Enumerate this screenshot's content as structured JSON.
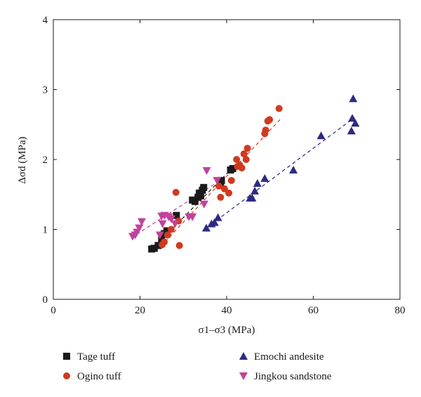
{
  "chart_data": {
    "type": "scatter",
    "title": "",
    "xlabel": "σ1–σ3 (MPa)",
    "ylabel": "Δσd (MPa)",
    "xlim": [
      0,
      80
    ],
    "ylim": [
      0,
      4
    ],
    "xticks": [
      0,
      20,
      40,
      60,
      80
    ],
    "yticks": [
      0,
      1,
      2,
      3,
      4
    ],
    "grid": false,
    "legend_placement": "bottom",
    "series": [
      {
        "name": "Tage tuff",
        "marker": "square",
        "color": "#1a1a1a",
        "points": [
          [
            22.7,
            0.72
          ],
          [
            23.3,
            0.73
          ],
          [
            24.2,
            0.77
          ],
          [
            25.0,
            0.85
          ],
          [
            25.6,
            0.94
          ],
          [
            26.2,
            0.98
          ],
          [
            28.4,
            1.2
          ],
          [
            32.1,
            1.42
          ],
          [
            32.7,
            1.4
          ],
          [
            33.4,
            1.46
          ],
          [
            33.7,
            1.52
          ],
          [
            34.0,
            1.48
          ],
          [
            34.4,
            1.56
          ],
          [
            34.7,
            1.6
          ],
          [
            38.6,
            1.66
          ],
          [
            38.8,
            1.7
          ],
          [
            40.9,
            1.85
          ],
          [
            41.4,
            1.87
          ]
        ],
        "trend": [
          [
            22.5,
            0.7
          ],
          [
            42.0,
            1.92
          ]
        ]
      },
      {
        "name": "Ogino tuff",
        "marker": "circle",
        "color": "#d03a1f",
        "points": [
          [
            25.1,
            0.78
          ],
          [
            25.6,
            0.82
          ],
          [
            26.4,
            0.92
          ],
          [
            27.2,
            1.0
          ],
          [
            28.3,
            1.53
          ],
          [
            28.9,
            1.12
          ],
          [
            29.1,
            0.77
          ],
          [
            38.2,
            1.62
          ],
          [
            38.6,
            1.46
          ],
          [
            39.5,
            1.58
          ],
          [
            40.5,
            1.52
          ],
          [
            41.1,
            1.7
          ],
          [
            42.3,
            2.0
          ],
          [
            42.5,
            1.9
          ],
          [
            43.0,
            1.92
          ],
          [
            43.5,
            1.88
          ],
          [
            44.0,
            2.08
          ],
          [
            44.5,
            2.0
          ],
          [
            44.8,
            2.16
          ],
          [
            48.8,
            2.37
          ],
          [
            49.0,
            2.42
          ],
          [
            49.5,
            2.55
          ],
          [
            49.9,
            2.57
          ],
          [
            52.1,
            2.73
          ]
        ],
        "trend": [
          [
            24.8,
            0.76
          ],
          [
            52.3,
            2.57
          ]
        ]
      },
      {
        "name": "Emochi andesite",
        "marker": "triangle-up",
        "color": "#2d2a84",
        "points": [
          [
            35.3,
            1.02
          ],
          [
            36.5,
            1.08
          ],
          [
            37.2,
            1.1
          ],
          [
            38.0,
            1.17
          ],
          [
            45.4,
            1.45
          ],
          [
            45.9,
            1.45
          ],
          [
            46.5,
            1.55
          ],
          [
            47.1,
            1.66
          ],
          [
            48.8,
            1.73
          ],
          [
            55.4,
            1.85
          ],
          [
            61.8,
            2.34
          ],
          [
            68.8,
            2.41
          ],
          [
            69.0,
            2.59
          ],
          [
            69.2,
            2.87
          ],
          [
            69.7,
            2.52
          ]
        ],
        "trend": [
          [
            35.3,
            1.02
          ],
          [
            69.5,
            2.6
          ]
        ]
      },
      {
        "name": "Jingkou sandstone",
        "marker": "triangle-down",
        "color": "#c2419a",
        "points": [
          [
            18.3,
            0.9
          ],
          [
            18.9,
            0.92
          ],
          [
            19.3,
            0.96
          ],
          [
            19.8,
            1.02
          ],
          [
            20.4,
            1.11
          ],
          [
            24.6,
            0.92
          ],
          [
            25.0,
            1.19
          ],
          [
            25.2,
            1.08
          ],
          [
            25.7,
            1.2
          ],
          [
            26.6,
            1.18
          ],
          [
            27.2,
            1.15
          ],
          [
            28.1,
            1.08
          ],
          [
            31.3,
            1.18
          ],
          [
            32.1,
            1.18
          ],
          [
            34.8,
            1.36
          ],
          [
            35.4,
            1.84
          ],
          [
            37.8,
            1.7
          ]
        ],
        "trend": [
          [
            18.0,
            0.88
          ],
          [
            38.5,
            1.7
          ]
        ]
      }
    ]
  }
}
